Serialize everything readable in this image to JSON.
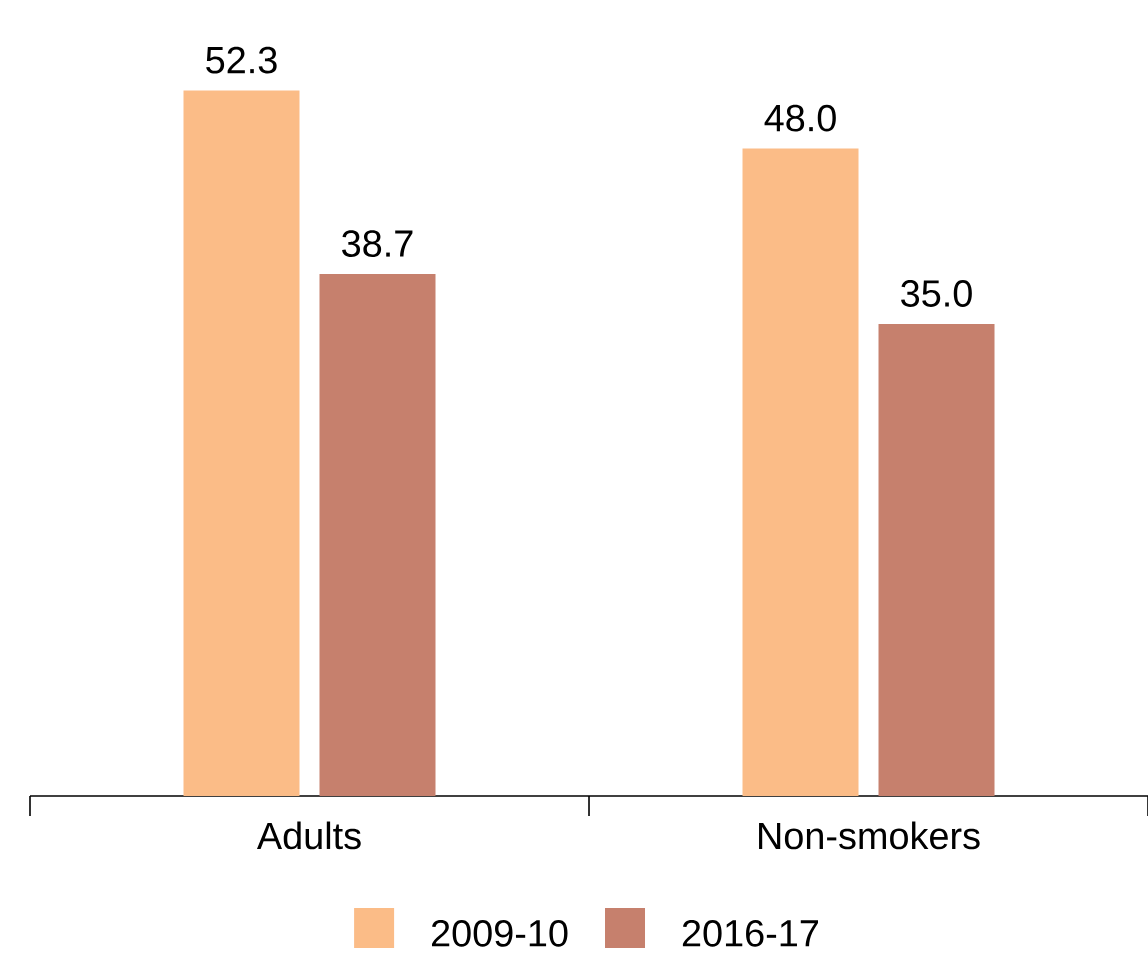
{
  "chart_data": {
    "type": "bar",
    "categories": [
      "Adults",
      "Non-smokers"
    ],
    "series": [
      {
        "name": "2009-10",
        "color": "#fbbc87",
        "values": [
          52.3,
          48.0
        ],
        "value_labels": [
          "52.3",
          "48.0"
        ]
      },
      {
        "name": "2016-17",
        "color": "#c6806d",
        "values": [
          38.7,
          35.0
        ],
        "value_labels": [
          "38.7",
          "35.0"
        ]
      }
    ],
    "legend": "bottom"
  }
}
